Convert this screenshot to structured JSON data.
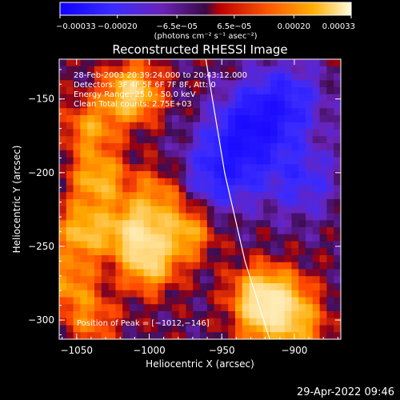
{
  "chart_data": {
    "type": "heatmap",
    "title": "Reconstructed RHESSI Image",
    "xlabel": "Heliocentric X (arcsec)",
    "ylabel": "Heliocentric Y (arcsec)",
    "xlim": [
      -1062,
      -868
    ],
    "ylim": [
      -313,
      -123
    ],
    "x_ticks": [
      {
        "value": -1050,
        "label": "−1050"
      },
      {
        "value": -1000,
        "label": "−1000"
      },
      {
        "value": -950,
        "label": "−950"
      },
      {
        "value": -900,
        "label": "−900"
      }
    ],
    "y_ticks": [
      {
        "value": -150,
        "label": "−150"
      },
      {
        "value": -200,
        "label": "−200"
      },
      {
        "value": -250,
        "label": "−250"
      },
      {
        "value": -300,
        "label": "−300"
      }
    ],
    "colorbar": {
      "min": -0.00033,
      "max": 0.00033,
      "units": "(photons cm⁻² s⁻¹ asec⁻²)",
      "ticks": [
        {
          "value": -0.00033,
          "label": "−0.00033"
        },
        {
          "value": -0.0002,
          "label": "−0.00020"
        },
        {
          "value": -6.5e-05,
          "label": "−6.5e−05"
        },
        {
          "value": 6.5e-05,
          "label": "6.5e−05"
        },
        {
          "value": 0.0002,
          "label": "0.00020"
        },
        {
          "value": 0.00033,
          "label": "0.00033"
        }
      ]
    },
    "annotations": [
      "28-Feb-2003 20:39:24.000 to 20:43:12.000",
      "Detectors: 3F 4F 5F 6F 7F 8F, Att: 0",
      "Energy Range: 25.0 - 50.0 keV",
      "Clean     Total counts: 2.75E+03"
    ],
    "peak_label": "Position of Peak = [−1012,−146]",
    "limb_curve": [
      [
        -961,
        -123
      ],
      [
        -948,
        -200
      ],
      [
        -934,
        -260
      ],
      [
        -917,
        -313
      ]
    ],
    "heatmap_grid": {
      "cols": 40,
      "rows": 40,
      "note_values": "normalized intensity (-1..1) sampled on a regular grid spanning xlim / ylim",
      "bright_sources": [
        {
          "x": -1012,
          "y": -146,
          "amp": 1.0
        },
        {
          "x": -1040,
          "y": -170,
          "amp": 0.6
        },
        {
          "x": -1035,
          "y": -205,
          "amp": 0.75
        },
        {
          "x": -1045,
          "y": -240,
          "amp": 0.8
        },
        {
          "x": -1010,
          "y": -240,
          "amp": 0.95
        },
        {
          "x": -1000,
          "y": -262,
          "amp": 0.85
        },
        {
          "x": -995,
          "y": -215,
          "amp": 0.5
        },
        {
          "x": -975,
          "y": -240,
          "amp": 0.7
        },
        {
          "x": -1055,
          "y": -275,
          "amp": 0.55
        },
        {
          "x": -1040,
          "y": -300,
          "amp": 0.45
        },
        {
          "x": -925,
          "y": -282,
          "amp": 0.8
        },
        {
          "x": -905,
          "y": -285,
          "amp": 0.55
        },
        {
          "x": -895,
          "y": -305,
          "amp": 0.5
        },
        {
          "x": -920,
          "y": -300,
          "amp": 0.7
        }
      ],
      "dark_sources": [
        {
          "x": -930,
          "y": -170,
          "amp": 0.85
        },
        {
          "x": -905,
          "y": -150,
          "amp": 0.6
        },
        {
          "x": -950,
          "y": -200,
          "amp": 0.7
        },
        {
          "x": -895,
          "y": -205,
          "amp": 0.5
        }
      ]
    }
  },
  "footer": {
    "timestamp": "29-Apr-2022 09:46"
  }
}
